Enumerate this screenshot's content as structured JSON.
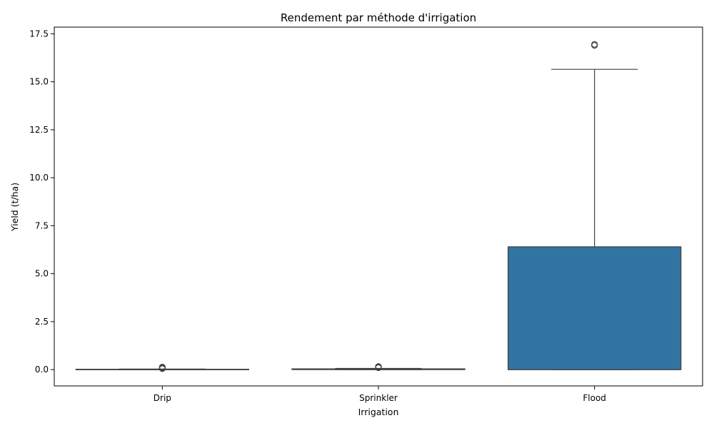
{
  "chart_data": {
    "type": "box",
    "title": "Rendement par méthode d'irrigation",
    "xlabel": "Irrigation",
    "ylabel": "Yield (t/ha)",
    "ylim": [
      -0.85,
      17.85
    ],
    "yticks": [
      "0.0",
      "2.5",
      "5.0",
      "7.5",
      "10.0",
      "12.5",
      "15.0",
      "17.5"
    ],
    "categories": [
      "Drip",
      "Sprinkler",
      "Flood"
    ],
    "grid": false,
    "legend": "none",
    "box_color": "#3274a1",
    "line_color": "#3f3f3f",
    "boxes": [
      {
        "category": "Drip",
        "whisker_low": 0.0,
        "q1": 0.0,
        "median": 0.0,
        "q3": 0.02,
        "whisker_high": 0.03,
        "outliers": [
          0.05,
          0.08,
          0.1,
          0.13
        ]
      },
      {
        "category": "Sprinkler",
        "whisker_low": 0.0,
        "q1": 0.0,
        "median": 0.02,
        "q3": 0.04,
        "whisker_high": 0.06,
        "outliers": [
          0.1,
          0.13,
          0.16
        ]
      },
      {
        "category": "Flood",
        "whisker_low": 0.0,
        "q1": 0.0,
        "median": 0.0,
        "q3": 6.4,
        "whisker_high": 15.65,
        "outliers": [
          16.9,
          16.95
        ]
      }
    ]
  }
}
